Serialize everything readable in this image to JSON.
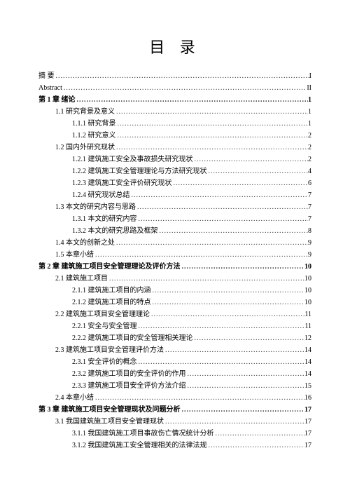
{
  "title": "目 录",
  "entries": [
    {
      "label": "摘  要",
      "page": "I",
      "indent": 0
    },
    {
      "label": "Abstract",
      "page": "II",
      "indent": 0
    },
    {
      "label": "第 1 章 绪论",
      "page": "1",
      "indent": 0,
      "bold": true
    },
    {
      "label": "1.1 研究背景及意义",
      "page": "1",
      "indent": 1
    },
    {
      "label": "1.1.1 研究背景",
      "page": "1",
      "indent": 2
    },
    {
      "label": "1.1.2 研究意义",
      "page": "2",
      "indent": 2
    },
    {
      "label": "1.2 国内外研究现状",
      "page": "2",
      "indent": 1
    },
    {
      "label": "1.2.1 建筑施工安全及事故损失研究现状",
      "page": "2",
      "indent": 2
    },
    {
      "label": "1.2.2 建筑施工安全管理理论与方法研究现状",
      "page": "4",
      "indent": 2
    },
    {
      "label": "1.2.3 建筑施工安全评价研究现状",
      "page": "6",
      "indent": 2
    },
    {
      "label": "1.2.4 研究现状总结",
      "page": "7",
      "indent": 2
    },
    {
      "label": "1.3 本文的研究内容与思路",
      "page": "7",
      "indent": 1
    },
    {
      "label": "1.3.1 本文的研究内容",
      "page": "7",
      "indent": 2
    },
    {
      "label": "1.3.2 本文的研究思路及框架",
      "page": "8",
      "indent": 2
    },
    {
      "label": "1.4 本文的创新之处",
      "page": "9",
      "indent": 1
    },
    {
      "label": "1.5 本章小结",
      "page": "9",
      "indent": 1
    },
    {
      "label": "第 2 章 建筑施工项目安全管理理论及评价方法",
      "page": "10",
      "indent": 0,
      "bold": true
    },
    {
      "label": "2.1 建筑施工项目",
      "page": "10",
      "indent": 1
    },
    {
      "label": "2.1.1 建筑施工项目的内涵",
      "page": "10",
      "indent": 2
    },
    {
      "label": "2.1.2 建筑施工项目的特点",
      "page": "10",
      "indent": 2
    },
    {
      "label": "2.2 建筑施工项目安全管理理论",
      "page": "11",
      "indent": 1
    },
    {
      "label": "2.2.1 安全与安全管理",
      "page": "11",
      "indent": 2
    },
    {
      "label": "2.2.2 建筑施工项目的安全管理相关理论",
      "page": "12",
      "indent": 2
    },
    {
      "label": "2.3 建筑施工项目安全管理评价方法",
      "page": "14",
      "indent": 1
    },
    {
      "label": "2.3.1 安全评价的概念",
      "page": "14",
      "indent": 2
    },
    {
      "label": "2.3.2 建筑施工项目的安全评价的作用",
      "page": "14",
      "indent": 2
    },
    {
      "label": "2.3.3 建筑施工项目安全评价方法介绍",
      "page": "15",
      "indent": 2
    },
    {
      "label": "2.4 本章小结",
      "page": "16",
      "indent": 1
    },
    {
      "label": "第 3 章 建筑施工项目安全管理现状及问题分析",
      "page": "17",
      "indent": 0,
      "bold": true
    },
    {
      "label": "3.1 我国建筑施工项目安全管理现状",
      "page": "17",
      "indent": 1
    },
    {
      "label": "3.1.1 我国建筑施工项目事故伤亡情况统计分析",
      "page": "17",
      "indent": 2
    },
    {
      "label": "3.1.2 我国建筑施工安全管理相关的法律法规",
      "page": "17",
      "indent": 2
    }
  ]
}
